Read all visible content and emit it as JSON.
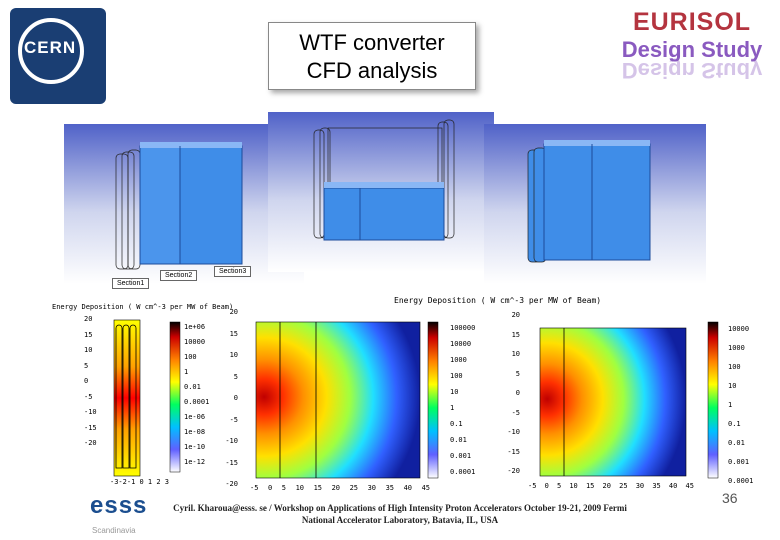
{
  "logo_cern": "CERN",
  "title": {
    "line1": "WTF converter",
    "line2": "CFD analysis"
  },
  "eurisol": {
    "line1": "EURISOL",
    "line2": "Design Study",
    "mirror": "Design Study"
  },
  "section_labels": [
    "Section1",
    "Section2",
    "Section3"
  ],
  "energy_title_left": "Energy Deposition ( W cm^-3 per MW of Beam)",
  "energy_title_right": "Energy Deposition ( W cm^-3 per MW of Beam)",
  "plot1": {
    "y_ticks": [
      "20",
      "15",
      "10",
      "5",
      "0",
      "-5",
      "-10",
      "-15",
      "-20"
    ],
    "x_ticks": "-3-2-1 0 1 2 3",
    "cbar": [
      "1e+06",
      "10000",
      "100",
      "1",
      "0.01",
      "0.0001",
      "1e-06",
      "1e-08",
      "1e-10",
      "1e-12"
    ]
  },
  "plot2": {
    "y_ticks": [
      "20",
      "15",
      "10",
      "5",
      "0",
      "-5",
      "-10",
      "-15",
      "-20"
    ],
    "x_ticks": [
      "-5",
      "0",
      "5",
      "10",
      "15",
      "20",
      "25",
      "30",
      "35",
      "40",
      "45"
    ],
    "cbar": [
      "100000",
      "10000",
      "1000",
      "100",
      "10",
      "1",
      "0.1",
      "0.01",
      "0.001",
      "0.0001"
    ]
  },
  "plot3": {
    "y_ticks": [
      "20",
      "15",
      "10",
      "5",
      "0",
      "-5",
      "-10",
      "-15",
      "-20"
    ],
    "x_ticks": [
      "-5",
      "0",
      "5",
      "10",
      "15",
      "20",
      "25",
      "30",
      "35",
      "40",
      "45"
    ],
    "cbar": [
      "10000",
      "1000",
      "100",
      "10",
      "1",
      "0.1",
      "0.01",
      "0.001",
      "0.0001"
    ]
  },
  "footer": {
    "line1": "Cyril. Kharoua@esss. se / Workshop on Applications of High Intensity Proton Accelerators October 19-21, 2009 Fermi",
    "line2": "National Accelerator Laboratory, Batavia, IL, USA"
  },
  "esss": "esss",
  "esss_sub": "Scandinavia",
  "page_number": "36"
}
